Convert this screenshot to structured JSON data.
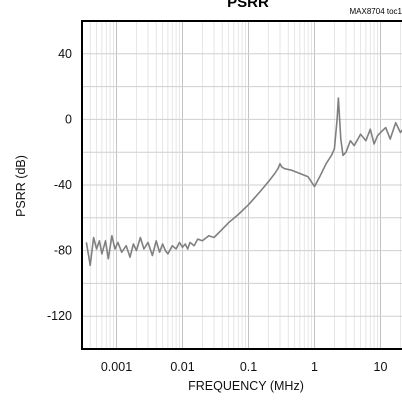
{
  "header": {
    "title": "PSRR",
    "toc_id": "MAX8704 toc1"
  },
  "chart_data": {
    "type": "line",
    "title": "PSRR",
    "xlabel": "FREQUENCY (MHz)",
    "ylabel": "PSRR (dB)",
    "x_scale": "log",
    "xlim": [
      0.0003,
      30
    ],
    "ylim": [
      -140,
      60
    ],
    "grid": true,
    "x_ticks": [
      0.001,
      0.01,
      0.1,
      1,
      10
    ],
    "x_tick_labels": [
      "0.001",
      "0.01",
      "0.1",
      "1",
      "10"
    ],
    "y_ticks": [
      40,
      0,
      -40,
      -80,
      -120
    ],
    "y_tick_labels": [
      "40",
      "0",
      "-40",
      "-80",
      "-120"
    ],
    "series": [
      {
        "color": "#808080",
        "x": [
          0.00035,
          0.0004,
          0.00045,
          0.0005,
          0.00055,
          0.0006,
          0.00068,
          0.00075,
          0.00085,
          0.00095,
          0.00105,
          0.0012,
          0.0014,
          0.0016,
          0.0018,
          0.002,
          0.0023,
          0.0026,
          0.003,
          0.0035,
          0.004,
          0.0045,
          0.005,
          0.0055,
          0.006,
          0.007,
          0.008,
          0.009,
          0.01,
          0.011,
          0.012,
          0.013,
          0.015,
          0.017,
          0.02,
          0.025,
          0.03,
          0.04,
          0.05,
          0.07,
          0.1,
          0.15,
          0.2,
          0.25,
          0.28,
          0.3,
          0.32,
          0.35,
          0.45,
          0.6,
          0.8,
          1.0,
          1.2,
          1.5,
          1.8,
          2.0,
          2.2,
          2.3,
          2.5,
          2.7,
          3.0,
          3.5,
          4.0,
          5.0,
          6.0,
          7.0,
          8.0,
          9.0,
          10.0,
          12.0,
          14.0,
          17.0,
          20.0,
          25.0,
          30.0
        ],
        "y": [
          -75,
          -89,
          -72,
          -79,
          -74,
          -82,
          -74,
          -85,
          -71,
          -79,
          -75,
          -81,
          -77,
          -84,
          -76,
          -80,
          -72,
          -79,
          -75,
          -83,
          -74,
          -81,
          -76,
          -80,
          -82,
          -77,
          -79,
          -75,
          -78,
          -76,
          -79,
          -75,
          -77,
          -73,
          -74,
          -71,
          -72,
          -67,
          -63,
          -58,
          -52,
          -44,
          -38,
          -33,
          -30,
          -27,
          -29,
          -30,
          -31,
          -33,
          -35,
          -41,
          -35,
          -27,
          -22,
          -18,
          0,
          13,
          -12,
          -22,
          -20,
          -13,
          -16,
          -9,
          -13,
          -6,
          -15,
          -10,
          -8,
          -5,
          -12,
          -2,
          -8,
          -3,
          -12
        ]
      }
    ]
  }
}
